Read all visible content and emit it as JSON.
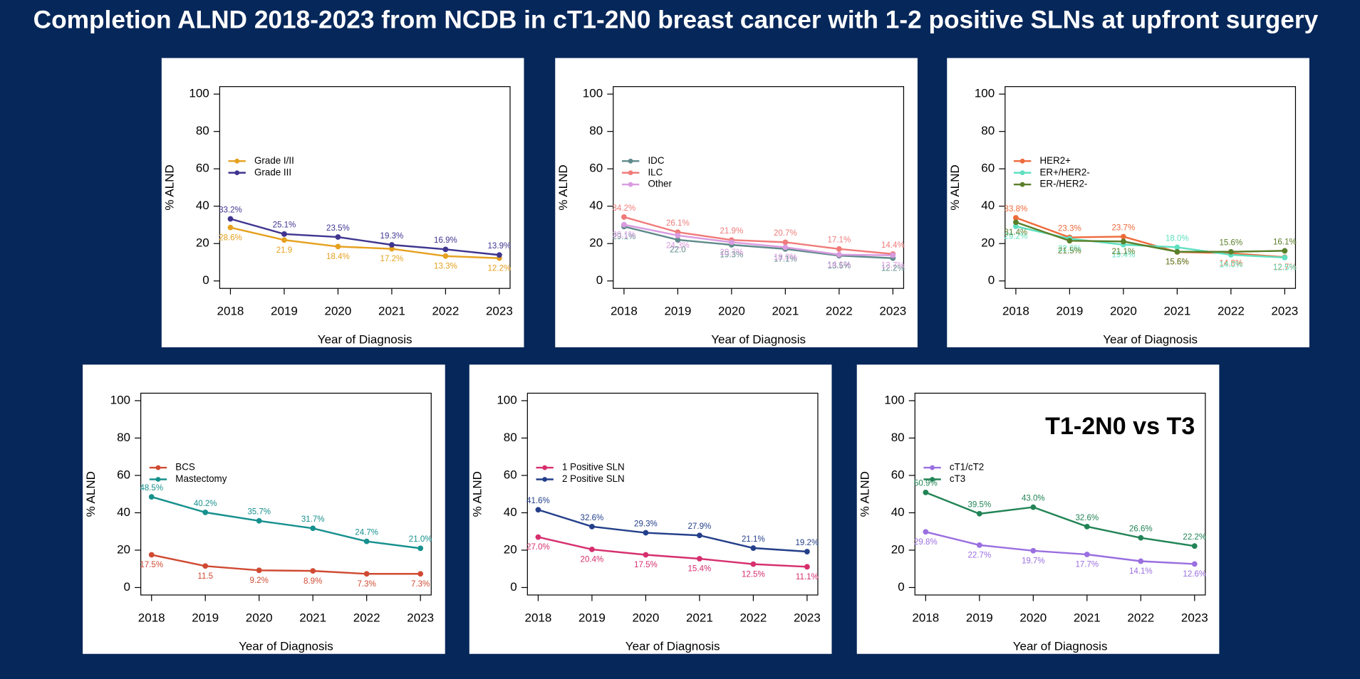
{
  "title": "Completion ALND 2018-2023 from NCDB in cT1-2N0 breast cancer with 1-2 positive SLNs at upfront surgery",
  "chart_data": [
    {
      "type": "line",
      "xlabel": "Year of Diagnosis",
      "ylabel": "% ALND",
      "x": [
        2018,
        2019,
        2020,
        2021,
        2022,
        2023
      ],
      "xlim": [
        2017.8,
        2023.2
      ],
      "xticks": [
        2018,
        2019,
        2020,
        2021,
        2022,
        2023
      ],
      "ylim": [
        -4,
        104
      ],
      "yticks": [
        0,
        20,
        40,
        60,
        80,
        100
      ],
      "legend": "left",
      "series": [
        {
          "name": "Grade I/II",
          "color": "#e6a11f",
          "values": [
            28.6,
            21.9,
            18.4,
            17.2,
            13.3,
            12.2
          ],
          "value_labels": [
            "28.6%",
            "21.9",
            "18.4%",
            "17.2%",
            "13.3%",
            "12.2%"
          ]
        },
        {
          "name": "Grade III",
          "color": "#3f3590",
          "values": [
            33.2,
            25.1,
            23.5,
            19.3,
            16.9,
            13.9
          ],
          "value_labels": [
            "33.2%",
            "25.1%",
            "23.5%",
            "19.3%",
            "16.9%",
            "13.9%"
          ]
        }
      ]
    },
    {
      "type": "line",
      "xlabel": "Year of Diagnosis",
      "ylabel": "% ALND",
      "x": [
        2018,
        2019,
        2020,
        2021,
        2022,
        2023
      ],
      "xlim": [
        2017.8,
        2023.2
      ],
      "xticks": [
        2018,
        2019,
        2020,
        2021,
        2022,
        2023
      ],
      "ylim": [
        -4,
        104
      ],
      "yticks": [
        0,
        20,
        40,
        60,
        80,
        100
      ],
      "legend": "left",
      "series": [
        {
          "name": "IDC",
          "color": "#5f8a8b",
          "values": [
            29.1,
            22.0,
            19.3,
            17.1,
            13.5,
            12.2
          ],
          "value_labels": [
            "29.1%",
            "22.0",
            "19.3%",
            "17.1%",
            "13.5%",
            "12.2%"
          ]
        },
        {
          "name": "ILC",
          "color": "#f07b7b",
          "values": [
            34.2,
            26.1,
            21.9,
            20.7,
            17.1,
            14.4
          ],
          "value_labels": [
            "34.2%",
            "26.1%",
            "21.9%",
            "20.7%",
            "17.1%",
            "14.4%"
          ]
        },
        {
          "name": "Other",
          "color": "#d99be0",
          "values": [
            30.1,
            24.3,
            20.7,
            18.0,
            14.1,
            13.7
          ],
          "value_labels": [
            "30.1%",
            "24.3%",
            "20.7%",
            "18.0%",
            "14.1%",
            "13.7%"
          ]
        }
      ]
    },
    {
      "type": "line",
      "xlabel": "Year of Diagnosis",
      "ylabel": "% ALND",
      "x": [
        2018,
        2019,
        2020,
        2021,
        2022,
        2023
      ],
      "xlim": [
        2017.8,
        2023.2
      ],
      "xticks": [
        2018,
        2019,
        2020,
        2021,
        2022,
        2023
      ],
      "ylim": [
        -4,
        104
      ],
      "yticks": [
        0,
        20,
        40,
        60,
        80,
        100
      ],
      "legend": "left",
      "series": [
        {
          "name": "HER2+",
          "color": "#ee6a3a",
          "values": [
            33.8,
            23.3,
            23.7,
            15.5,
            14.8,
            12.7
          ],
          "value_labels": [
            "33.8%",
            "23.3%",
            "23.7%",
            "15.5%",
            "14.8%",
            "12.7%"
          ]
        },
        {
          "name": "ER+/HER2-",
          "color": "#5fe0c0",
          "values": [
            29.2,
            22.6,
            19.4,
            18.0,
            14.0,
            12.5
          ],
          "value_labels": [
            "29.2%",
            "22.6%",
            "19.4%",
            "18.0%",
            "14.0%",
            "12.5%"
          ]
        },
        {
          "name": "ER-/HER2-",
          "color": "#5a7f2a",
          "values": [
            31.4,
            21.5,
            21.1,
            15.6,
            15.6,
            16.1
          ],
          "value_labels": [
            "31.4%",
            "21.5%",
            "21.1%",
            "15.6%",
            "15.6%",
            "16.1%"
          ]
        }
      ]
    },
    {
      "type": "line",
      "xlabel": "Year of Diagnosis",
      "ylabel": "% ALND",
      "x": [
        2018,
        2019,
        2020,
        2021,
        2022,
        2023
      ],
      "xlim": [
        2017.8,
        2023.2
      ],
      "xticks": [
        2018,
        2019,
        2020,
        2021,
        2022,
        2023
      ],
      "ylim": [
        -4,
        104
      ],
      "yticks": [
        0,
        20,
        40,
        60,
        80,
        100
      ],
      "legend": "left",
      "series": [
        {
          "name": "BCS",
          "color": "#d04a32",
          "values": [
            17.5,
            11.5,
            9.2,
            8.9,
            7.3,
            7.3
          ],
          "value_labels": [
            "17.5%",
            "11.5",
            "9.2%",
            "8.9%",
            "7.3%",
            "7.3%"
          ]
        },
        {
          "name": "Mastectomy",
          "color": "#16908e",
          "values": [
            48.5,
            40.2,
            35.7,
            31.7,
            24.7,
            21.0
          ],
          "value_labels": [
            "48.5%",
            "40.2%",
            "35.7%",
            "31.7%",
            "24.7%",
            "21.0%"
          ]
        }
      ]
    },
    {
      "type": "line",
      "xlabel": "Year of Diagnosis",
      "ylabel": "% ALND",
      "x": [
        2018,
        2019,
        2020,
        2021,
        2022,
        2023
      ],
      "xlim": [
        2017.8,
        2023.2
      ],
      "xticks": [
        2018,
        2019,
        2020,
        2021,
        2022,
        2023
      ],
      "ylim": [
        -4,
        104
      ],
      "yticks": [
        0,
        20,
        40,
        60,
        80,
        100
      ],
      "legend": "left",
      "series": [
        {
          "name": "1 Positive SLN",
          "color": "#d62f6e",
          "values": [
            27.0,
            20.4,
            17.5,
            15.4,
            12.5,
            11.1
          ],
          "value_labels": [
            "27.0%",
            "20.4%",
            "17.5%",
            "15.4%",
            "12.5%",
            "11.1%"
          ]
        },
        {
          "name": "2 Positive SLN",
          "color": "#243f8a",
          "values": [
            41.6,
            32.6,
            29.3,
            27.9,
            21.1,
            19.2
          ],
          "value_labels": [
            "41.6%",
            "32.6%",
            "29.3%",
            "27.9%",
            "21.1%",
            "19.2%"
          ]
        }
      ]
    },
    {
      "type": "line",
      "xlabel": "Year of Diagnosis",
      "ylabel": "% ALND",
      "annotation": "T1-2N0 vs T3",
      "x": [
        2018,
        2019,
        2020,
        2021,
        2022,
        2023
      ],
      "xlim": [
        2017.8,
        2023.2
      ],
      "xticks": [
        2018,
        2019,
        2020,
        2021,
        2022,
        2023
      ],
      "ylim": [
        -4,
        104
      ],
      "yticks": [
        0,
        20,
        40,
        60,
        80,
        100
      ],
      "legend": "left",
      "series": [
        {
          "name": "cT1/cT2",
          "color": "#9a6fe0",
          "values": [
            29.8,
            22.7,
            19.7,
            17.7,
            14.1,
            12.6
          ],
          "value_labels": [
            "29.8%",
            "22.7%",
            "19.7%",
            "17.7%",
            "14.1%",
            "12.6%"
          ]
        },
        {
          "name": "cT3",
          "color": "#228456",
          "values": [
            50.9,
            39.5,
            43.0,
            32.6,
            26.6,
            22.2
          ],
          "value_labels": [
            "50.9%",
            "39.5%",
            "43.0%",
            "32.6%",
            "26.6%",
            "22.2%"
          ]
        }
      ]
    }
  ]
}
